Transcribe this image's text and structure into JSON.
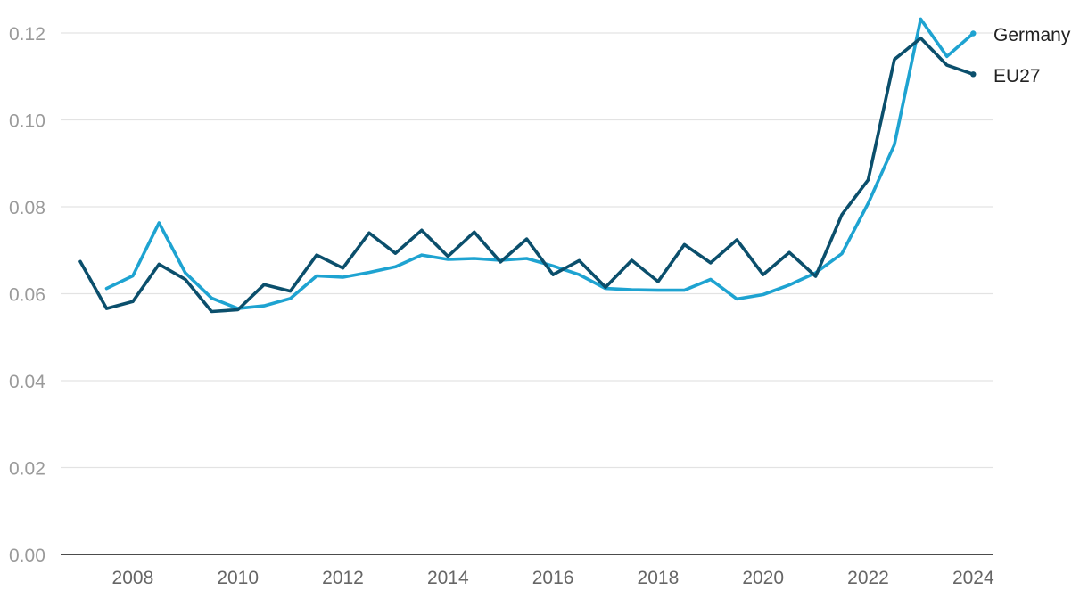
{
  "chart_data": {
    "type": "line",
    "title": "",
    "xlabel": "",
    "ylabel": "",
    "ylim": [
      0,
      0.12
    ],
    "xlim": [
      2007,
      2024.25
    ],
    "grid": true,
    "legend_placement": "right, labels at line ends",
    "yticks": [
      "0.00",
      "0.02",
      "0.04",
      "0.06",
      "0.08",
      "0.10",
      "0.12"
    ],
    "xticks": [
      "2008",
      "2010",
      "2012",
      "2014",
      "2016",
      "2018",
      "2020",
      "2022",
      "2024"
    ],
    "series": [
      {
        "name": "Germany",
        "color": "#1ea3d1",
        "points": [
          [
            2007.5,
            0.0612
          ],
          [
            2008.0,
            0.0641
          ],
          [
            2008.5,
            0.0763
          ],
          [
            2009.0,
            0.0648
          ],
          [
            2009.5,
            0.059
          ],
          [
            2010.0,
            0.0566
          ],
          [
            2010.5,
            0.0572
          ],
          [
            2011.0,
            0.0589
          ],
          [
            2011.5,
            0.0641
          ],
          [
            2012.0,
            0.0638
          ],
          [
            2012.5,
            0.0649
          ],
          [
            2013.0,
            0.0662
          ],
          [
            2013.5,
            0.0689
          ],
          [
            2014.0,
            0.0679
          ],
          [
            2014.5,
            0.0681
          ],
          [
            2015.0,
            0.0677
          ],
          [
            2015.5,
            0.0681
          ],
          [
            2016.0,
            0.0664
          ],
          [
            2016.5,
            0.0644
          ],
          [
            2017.0,
            0.0612
          ],
          [
            2017.5,
            0.0609
          ],
          [
            2018.0,
            0.0608
          ],
          [
            2018.5,
            0.0608
          ],
          [
            2019.0,
            0.0633
          ],
          [
            2019.5,
            0.0588
          ],
          [
            2020.0,
            0.0598
          ],
          [
            2020.5,
            0.062
          ],
          [
            2021.0,
            0.0648
          ],
          [
            2021.5,
            0.0692
          ],
          [
            2022.0,
            0.0808
          ],
          [
            2022.5,
            0.0943
          ],
          [
            2023.0,
            0.1232
          ],
          [
            2023.5,
            0.1146
          ],
          [
            2024.0,
            0.1199
          ]
        ]
      },
      {
        "name": "EU27",
        "color": "#0b4f6c",
        "points": [
          [
            2007.0,
            0.0674
          ],
          [
            2007.5,
            0.0566
          ],
          [
            2008.0,
            0.0582
          ],
          [
            2008.5,
            0.0668
          ],
          [
            2009.0,
            0.0633
          ],
          [
            2009.5,
            0.0559
          ],
          [
            2010.0,
            0.0563
          ],
          [
            2010.5,
            0.0621
          ],
          [
            2011.0,
            0.0606
          ],
          [
            2011.5,
            0.0689
          ],
          [
            2012.0,
            0.0659
          ],
          [
            2012.5,
            0.074
          ],
          [
            2013.0,
            0.0693
          ],
          [
            2013.5,
            0.0746
          ],
          [
            2014.0,
            0.0686
          ],
          [
            2014.5,
            0.0742
          ],
          [
            2015.0,
            0.0673
          ],
          [
            2015.5,
            0.0726
          ],
          [
            2016.0,
            0.0644
          ],
          [
            2016.5,
            0.0676
          ],
          [
            2017.0,
            0.0615
          ],
          [
            2017.5,
            0.0677
          ],
          [
            2018.0,
            0.0628
          ],
          [
            2018.5,
            0.0713
          ],
          [
            2019.0,
            0.0671
          ],
          [
            2019.5,
            0.0724
          ],
          [
            2020.0,
            0.0644
          ],
          [
            2020.5,
            0.0695
          ],
          [
            2021.0,
            0.064
          ],
          [
            2021.5,
            0.0782
          ],
          [
            2022.0,
            0.0862
          ],
          [
            2022.5,
            0.1139
          ],
          [
            2023.0,
            0.1188
          ],
          [
            2023.5,
            0.1126
          ],
          [
            2024.0,
            0.1105
          ]
        ]
      }
    ]
  }
}
